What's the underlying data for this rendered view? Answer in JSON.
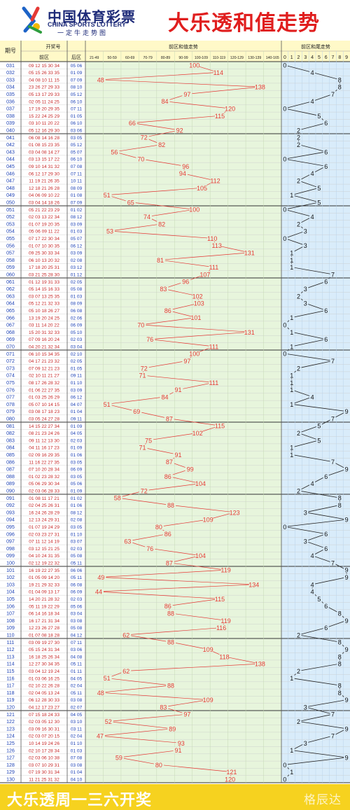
{
  "header": {
    "brand_cn": "中国体育彩票",
    "brand_en": "CHINA SPORTS LOTTERY",
    "brand_slogan": "一定牛走势图",
    "title": "大乐透和值走势"
  },
  "columns": {
    "issue": "期号",
    "draw": "开奖号",
    "front": "前区",
    "back": "后区",
    "sum_trend": "前区和值走势",
    "tail_trend": "前区和尾走势",
    "sum_ranges": [
      "21-49",
      "50-59",
      "60-69",
      "70-79",
      "80-89",
      "90-99",
      "100-109",
      "110-119",
      "120-129",
      "130-139",
      "140-165"
    ],
    "tail_digits": [
      "0",
      "1",
      "2",
      "3",
      "4",
      "5",
      "6",
      "7",
      "8",
      "9"
    ]
  },
  "footer": {
    "text": "大乐透周一三六开奖",
    "watermark": "格辰达"
  },
  "colors": {
    "sum_line": "#e53935",
    "tail_line": "#222222",
    "front_area": "#e7f5dc",
    "tail_area": "#d9ecfa",
    "header_bg": "#fff9c8",
    "front_text": "#c62828",
    "back_text": "#1a3fb5",
    "issue_text": "#1a3fb5"
  },
  "chart_data": {
    "type": "line",
    "issues": [
      "031",
      "032",
      "033",
      "034",
      "035",
      "036",
      "037",
      "038",
      "039",
      "040",
      "041",
      "042",
      "043",
      "044",
      "045",
      "046",
      "047",
      "048",
      "049",
      "050",
      "051",
      "052",
      "053",
      "054",
      "055",
      "056",
      "057",
      "058",
      "059",
      "060",
      "061",
      "062",
      "063",
      "064",
      "065",
      "066",
      "067",
      "068",
      "069",
      "070",
      "071",
      "072",
      "073",
      "074",
      "075",
      "076",
      "077",
      "078",
      "079",
      "080",
      "081",
      "082",
      "083",
      "084",
      "085",
      "086",
      "087",
      "088",
      "089",
      "090",
      "091",
      "092",
      "093",
      "094",
      "095",
      "096",
      "097",
      "098",
      "099",
      "100",
      "101",
      "102",
      "103",
      "104",
      "105",
      "106",
      "107",
      "108",
      "109",
      "110",
      "111",
      "112",
      "113",
      "114",
      "115",
      "116",
      "117",
      "118",
      "119",
      "120",
      "121",
      "122",
      "123",
      "124",
      "125",
      "126",
      "127",
      "128",
      "129",
      "130"
    ],
    "front": [
      "09 12 15 30 34",
      "05 15 26 33 35",
      "04 08 10 11 15",
      "23 26 27 29 33",
      "05 13 17 29 33",
      "02 05 11 24 25",
      "17 19 20 29 35",
      "15 22 24 25 29",
      "03 10 11 20 22",
      "05 12 16 29 30",
      "06 08 14 16 28",
      "01 08 15 23 35",
      "03 04 08 14 27",
      "03 13 15 17 22",
      "09 10 14 31 32",
      "06 12 17 29 30",
      "11 19 21 26 35",
      "12 18 21 26 28",
      "04 06 09 10 22",
      "03 04 14 18 26",
      "05 21 22 23 29",
      "02 03 13 22 34",
      "01 07 19 20 35",
      "05 06 09 11 22",
      "07 17 22 30 34",
      "01 07 10 30 35",
      "09 25 30 33 34",
      "06 10 13 20 32",
      "17 18 20 25 31",
      "03 21 25 28 30",
      "01 12 19 31 33",
      "05 14 15 16 33",
      "03 07 13 25 35",
      "05 12 21 32 33",
      "05 10 18 26 27",
      "13 19 20 24 25",
      "03 11 14 20 22",
      "15 20 31 32 33",
      "07 09 16 20 24",
      "04 20 21 32 34",
      "06 10 15 34 35",
      "04 17 21 23 32",
      "07 09 12 21 23",
      "02 10 11 21 27",
      "08 17 26 28 32",
      "01 06 22 27 35",
      "01 03 25 26 29",
      "05 07 10 14 15",
      "03 08 17 18 23",
      "03 05 24 27 28",
      "14 15 22 27 34",
      "08 21 23 24 26",
      "09 11 12 13 30",
      "04 11 16 17 23",
      "02 09 16 29 35",
      "11 16 22 27 35",
      "07 10 20 28 34",
      "01 02 23 28 32",
      "05 06 29 30 34",
      "02 03 06 28 33",
      "01 08 11 17 21",
      "02 04 25 26 31",
      "16 24 26 28 29",
      "12 13 24 29 31",
      "01 07 19 24 29",
      "02 03 23 27 31",
      "07 11 12 14 19",
      "03 12 15 21 25",
      "04 10 24 31 35",
      "02 12 19 22 32",
      "16 19 22 27 35",
      "01 05 09 14 20",
      "19 21 29 32 33",
      "01 04 09 13 17",
      "14 20 21 28 32",
      "05 11 19 22 29",
      "06 14 16 18 34",
      "16 17 21 31 34",
      "12 23 26 27 28",
      "01 07 08 18 28",
      "03 09 19 27 30",
      "05 15 24 31 34",
      "16 18 25 26 34",
      "12 27 30 34 35",
      "03 04 12 19 24",
      "01 03 06 16 25",
      "02 10 22 26 28",
      "02 04 05 13 24",
      "06 12 28 30 33",
      "04 12 17 23 27",
      "07 15 18 24 33",
      "02 03 05 12 30",
      "03 09 16 30 31",
      "02 03 07 20 15",
      "10 14 19 24 26",
      "02 10 17 28 34",
      "02 03 06 10 38",
      "03 07 10 29 31",
      "07 19 30 31 34",
      "11 21 25 31 32"
    ],
    "back": [
      "05 06",
      "01 09",
      "07 09",
      "08 10",
      "05 12",
      "06 10",
      "07 11",
      "01 05",
      "06 10",
      "03 06",
      "03 05",
      "05 12",
      "05 07",
      "06 10",
      "07 08",
      "07 11",
      "10 11",
      "08 09",
      "01 08",
      "07 09",
      "01 02",
      "08 12",
      "03 09",
      "01 03",
      "05 07",
      "06 12",
      "03 09",
      "02 08",
      "03 12",
      "01 12",
      "02 05",
      "05 08",
      "01 03",
      "08 09",
      "06 08",
      "02 06",
      "06 09",
      "05 10",
      "02 03",
      "03 04",
      "02 10",
      "02 05",
      "01 05",
      "09 11",
      "01 10",
      "03 09",
      "06 12",
      "04 07",
      "01 04",
      "09 11",
      "01 09",
      "04 05",
      "02 03",
      "01 09",
      "01 06",
      "03 05",
      "06 09",
      "03 05",
      "05 06",
      "01 09",
      "01 02",
      "01 06",
      "08 12",
      "02 08",
      "03 05",
      "01 10",
      "03 07",
      "02 03",
      "05 08",
      "05 11",
      "06 06",
      "05 11",
      "06 08",
      "06 09",
      "02 03",
      "05 06",
      "03 04",
      "03 08",
      "05 08",
      "04 12",
      "07 11",
      "03 06",
      "04 08",
      "05 11",
      "01 11",
      "04 05",
      "02 04",
      "05 11",
      "03 08",
      "02 07",
      "04 05",
      "03 10",
      "03 11",
      "02 04",
      "01 10",
      "01 03",
      "07 08",
      "03 08",
      "01 04",
      "04 10"
    ],
    "sums": [
      100,
      114,
      48,
      138,
      97,
      84,
      120,
      115,
      66,
      92,
      72,
      82,
      56,
      70,
      96,
      94,
      112,
      105,
      51,
      65,
      100,
      74,
      82,
      53,
      110,
      113,
      131,
      81,
      111,
      107,
      96,
      83,
      102,
      103,
      86,
      101,
      70,
      131,
      76,
      111,
      100,
      97,
      72,
      71,
      111,
      91,
      84,
      51,
      69,
      87,
      115,
      102,
      75,
      71,
      91,
      87,
      99,
      86,
      104,
      72,
      58,
      88,
      123,
      109,
      80,
      86,
      63,
      76,
      104,
      87,
      119,
      49,
      134,
      44,
      115,
      86,
      88,
      119,
      116,
      62,
      88,
      109,
      118,
      138,
      62,
      51,
      88,
      48,
      109,
      83,
      97,
      52,
      89,
      47,
      93,
      91,
      59,
      80,
      121,
      120
    ],
    "tails": [
      0,
      4,
      8,
      8,
      7,
      4,
      0,
      5,
      6,
      2,
      2,
      2,
      6,
      0,
      6,
      4,
      2,
      5,
      1,
      5,
      0,
      4,
      2,
      3,
      0,
      3,
      1,
      1,
      1,
      7,
      6,
      3,
      2,
      3,
      6,
      1,
      0,
      1,
      6,
      1,
      0,
      7,
      2,
      1,
      1,
      1,
      4,
      1,
      9,
      7,
      5,
      2,
      5,
      1,
      1,
      7,
      9,
      6,
      4,
      2,
      8,
      8,
      3,
      9,
      0,
      6,
      3,
      6,
      4,
      7,
      9,
      9,
      4,
      4,
      5,
      6,
      8,
      9,
      6,
      2,
      8,
      9,
      8,
      8,
      2,
      1,
      8,
      8,
      9,
      3,
      7,
      2,
      9,
      7,
      3,
      1,
      9,
      0,
      1,
      0
    ],
    "sum_bands": [
      [
        21,
        49
      ],
      [
        50,
        59
      ],
      [
        60,
        69
      ],
      [
        70,
        79
      ],
      [
        80,
        89
      ],
      [
        90,
        99
      ],
      [
        100,
        109
      ],
      [
        110,
        119
      ],
      [
        120,
        129
      ],
      [
        130,
        139
      ],
      [
        140,
        165
      ]
    ],
    "xlabel": "前区和值走势",
    "ylabel": "期号"
  }
}
